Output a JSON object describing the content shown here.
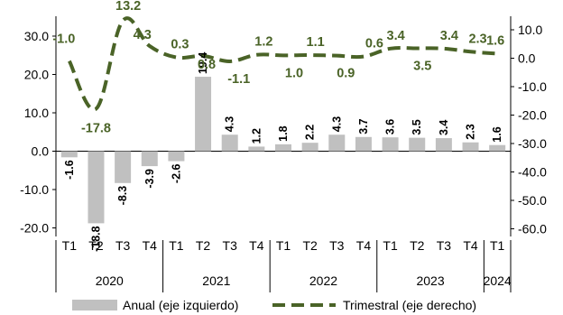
{
  "chart_data": {
    "type": "bar",
    "categories": [
      "T1",
      "T2",
      "T3",
      "T4",
      "T1",
      "T2",
      "T3",
      "T4",
      "T1",
      "T2",
      "T3",
      "T4",
      "T1",
      "T2",
      "T3",
      "T4",
      "T1"
    ],
    "groups": [
      {
        "label": "2020",
        "count": 4
      },
      {
        "label": "2021",
        "count": 4
      },
      {
        "label": "2022",
        "count": 4
      },
      {
        "label": "2023",
        "count": 4
      },
      {
        "label": "2024",
        "count": 1
      }
    ],
    "series": [
      {
        "name": "Anual (eje izquierdo)",
        "type": "bar",
        "axis": "left",
        "values": [
          -1.6,
          -18.8,
          -8.3,
          -3.9,
          -2.6,
          19.4,
          4.3,
          1.2,
          1.8,
          2.2,
          4.3,
          3.7,
          3.6,
          3.5,
          3.4,
          2.3,
          1.6
        ],
        "labels": [
          "-1.6",
          "-18.8",
          "-8.3",
          "-3.9",
          "-2.6",
          "19.4",
          "4.3",
          "1.2",
          "1.8",
          "2.2",
          "4.3",
          "3.7",
          "3.6",
          "3.5",
          "3.4",
          "2.3",
          "1.6"
        ]
      },
      {
        "name": "Trimestral (eje derecho)",
        "type": "line",
        "axis": "right",
        "values": [
          -1.0,
          -17.8,
          13.2,
          4.3,
          0.3,
          0.8,
          -1.1,
          1.2,
          1.0,
          1.1,
          0.9,
          0.6,
          3.4,
          3.5,
          3.4,
          2.3,
          1.6
        ],
        "labels": [
          "-1.0",
          "-17.8",
          "13.2",
          "4.3",
          "0.3",
          "0.8",
          "-1.1",
          "1.2",
          "1.0",
          "1.1",
          "0.9",
          "0.6",
          "3.4",
          "3.5",
          "3.4",
          "2.3",
          "1.6"
        ]
      }
    ],
    "y_left": {
      "min": -20,
      "max": 30,
      "ticks": [
        30,
        20,
        10,
        0,
        -10,
        -20
      ],
      "tick_labels": [
        "30.0",
        "20.0",
        "10.0",
        "0.0",
        "-10.0",
        "-20.0"
      ]
    },
    "y_right": {
      "min": -60,
      "max": 10,
      "ticks": [
        10,
        0,
        -10,
        -20,
        -30,
        -40,
        -50,
        -60
      ],
      "tick_labels": [
        "10.0",
        "0.0",
        "-10.0",
        "-20.0",
        "-30.0",
        "-40.0",
        "-50.0",
        "-60.0"
      ]
    },
    "legend": {
      "position": "bottom",
      "items": [
        "Anual (eje izquierdo)",
        "Trimestral (eje derecho)"
      ]
    },
    "colors": {
      "bar": "#c0c0c0",
      "line": "#4a6327",
      "label_line": "#4a6327"
    },
    "grid": false
  }
}
